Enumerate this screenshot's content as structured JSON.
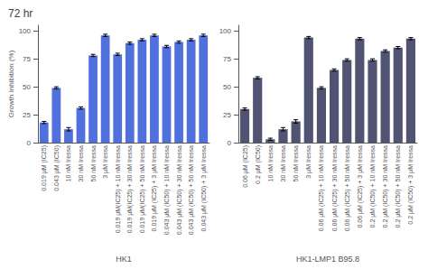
{
  "chart_data": [
    {
      "type": "bar",
      "title": "72 hr",
      "xlabel": "HK1",
      "ylabel": "Growth Inhibition (%)",
      "categories": [
        "0.019 μM (IC25)",
        "0.043 μM (IC50)",
        "10 nM Iressa",
        "30 nM Iressa",
        "50 nM Iressa",
        "3 μM Iressa",
        "0.019 μM(IC25) + 10 nM Iressa",
        "0.019 μM(IC25) + 30 nM Iressa",
        "0.019 μM(IC25) + 50 nM Iressa",
        "0.019 μM (IC25) + 3 μM Iressa",
        "0.043 μM (IC50) + 10 nM Iressa",
        "0.043 μM (IC50) + 30 nM Iressa",
        "0.043 μM (IC50) + 50 nM Iressa",
        "0.043 μM (IC50) + 3 μM Iressa"
      ],
      "values": [
        18,
        49,
        12,
        31,
        78,
        96,
        79,
        89,
        92,
        96,
        86,
        90,
        92,
        96
      ],
      "errors": [
        1.0,
        1.0,
        1.5,
        1.0,
        1.0,
        1.0,
        1.0,
        1.0,
        1.0,
        1.0,
        1.0,
        1.0,
        1.0,
        1.0
      ],
      "ylim": [
        0,
        105
      ],
      "yticks": [
        0,
        25,
        50,
        75,
        100
      ],
      "grid": false
    },
    {
      "type": "bar",
      "xlabel": "HK1-LMP1 B95.8",
      "categories": [
        "0.06 μM (IC25)",
        "0.2 μM (IC50)",
        "10 nM Iressa",
        "30 nM Iressa",
        "50 nM Iressa",
        "3 μM Iressa",
        "0.06 μM (IC25) + 10 nM Iressa",
        "0.06 μM (IC25) + 30 nM Iressa",
        "0.06 μM (IC25) + 50 nM Iressa",
        "0.06 μM (IC25) + 3 μM Iressa",
        "0.2 μM (IC50) + 10 nM Iressa",
        "0.2 μM (IC50) + 30 nM Iressa",
        "0.2 μM (IC50) + 50 nM Iressa",
        "0.2 μM (IC50) + 3 μM Iressa"
      ],
      "values": [
        30,
        58,
        3,
        12,
        19,
        94,
        49,
        65,
        74,
        93,
        74,
        82,
        85,
        93
      ],
      "errors": [
        1.0,
        1.0,
        1.0,
        1.5,
        1.5,
        1.0,
        1.0,
        1.0,
        1.0,
        1.0,
        1.0,
        1.0,
        1.0,
        1.0
      ],
      "ylim": [
        0,
        105
      ],
      "yticks": [
        0,
        25,
        50,
        75,
        100
      ],
      "grid": false
    }
  ]
}
